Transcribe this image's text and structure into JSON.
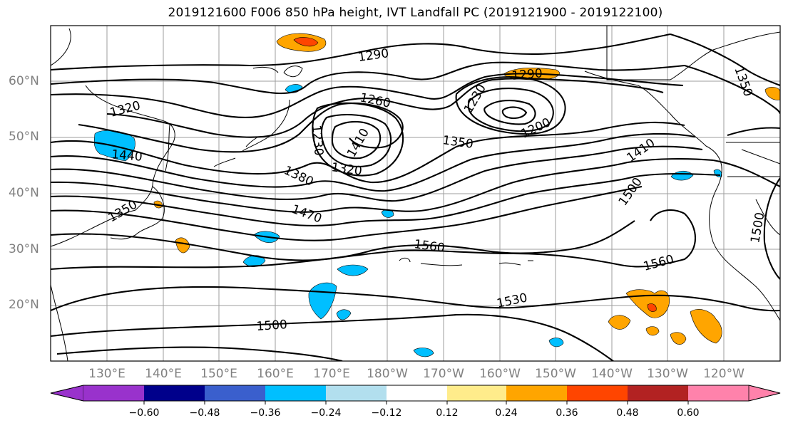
{
  "title": "2019121600 F006 850 hPa height, IVT Landfall PC (2019121900 - 2019122100)",
  "lat_labels": [
    "60°N",
    "50°N",
    "40°N",
    "30°N",
    "20°N"
  ],
  "lon_labels": [
    "130°E",
    "140°E",
    "150°E",
    "160°E",
    "170°E",
    "180°W",
    "170°W",
    "160°W",
    "150°W",
    "140°W",
    "130°W",
    "120°W"
  ],
  "contour_labels": [
    "1290",
    "1320",
    "1350",
    "1260",
    "1230",
    "1200",
    "1350",
    "1230",
    "1440",
    "1380",
    "1470",
    "1410",
    "1500",
    "1320",
    "1560",
    "1560",
    "1530",
    "1500",
    "1500",
    "1290",
    "1410",
    "1350"
  ],
  "colorbar": {
    "ticks": [
      "−0.60",
      "−0.48",
      "−0.36",
      "−0.24",
      "−0.12",
      "0.12",
      "0.24",
      "0.36",
      "0.48",
      "0.60"
    ],
    "colors": [
      "#9932cc",
      "#00008b",
      "#3a5fcd",
      "#00bfff",
      "#b2dfee",
      "#ffffff",
      "#ffffff",
      "#ffec8b",
      "#ffa500",
      "#ff4500",
      "#b22222",
      "#ff82ab"
    ]
  }
}
